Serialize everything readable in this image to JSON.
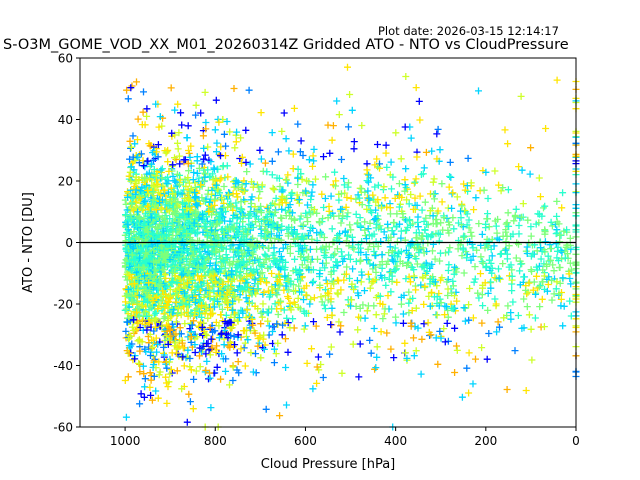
{
  "plot_date": "Plot date: 2026-03-15 12:14:17",
  "chart_data": {
    "type": "scatter",
    "title": "S-O3M_GOME_VOD_XX_M01_20260314Z Gridded ATO - NTO vs CloudPressure",
    "xlabel": "Cloud Pressure [hPa]",
    "ylabel": "ATO - NTO [DU]",
    "xlim": [
      1100,
      0
    ],
    "ylim": [
      -60,
      60
    ],
    "x_ticks": [
      1000,
      800,
      600,
      400,
      200,
      0
    ],
    "y_ticks": [
      60,
      40,
      20,
      0,
      -20,
      -40,
      -60
    ],
    "x_axis_inverted": true,
    "reference_line_y": 0,
    "marker": "plus",
    "grid": false,
    "legend": "none",
    "colors": {
      "reference_line": "#000000",
      "axes": "#000000",
      "marker_palette": [
        "#0000ff",
        "#0080ff",
        "#00d4ff",
        "#29ffce",
        "#7dff7a",
        "#ceff29",
        "#ffe500",
        "#ffb000"
      ]
    },
    "point_density_note_values": {
      "x_range_of_points": [
        1000,
        0
      ],
      "y_range_of_points": [
        -60,
        57
      ]
    }
  }
}
